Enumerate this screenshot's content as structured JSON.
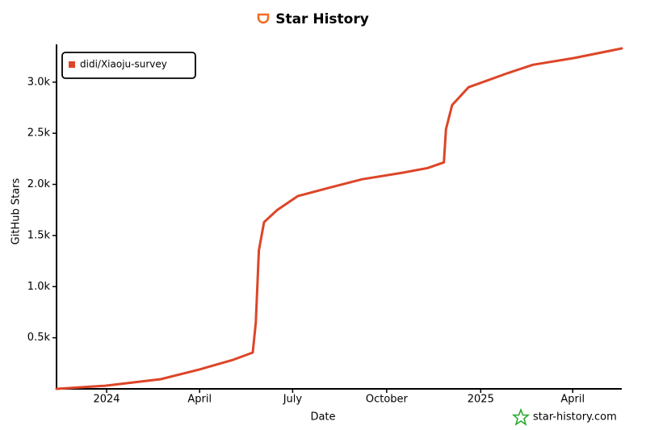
{
  "chart_data": {
    "type": "line",
    "title": "Star History",
    "x_label": "Date",
    "y_label": "GitHub Stars",
    "watermark": "star-history.com",
    "legend": "upper left",
    "xlim": [
      "2023-11-13",
      "2025-05-19"
    ],
    "xticks": [
      {
        "value": "2024-01-01",
        "label": "2024"
      },
      {
        "value": "2024-04-01",
        "label": "April"
      },
      {
        "value": "2024-07-01",
        "label": "July"
      },
      {
        "value": "2024-10-01",
        "label": "October"
      },
      {
        "value": "2025-01-01",
        "label": "2025"
      },
      {
        "value": "2025-04-01",
        "label": "April"
      }
    ],
    "ylim": [
      0,
      3330
    ],
    "yticks": [
      {
        "value": 500,
        "label": "0.5k"
      },
      {
        "value": 1000,
        "label": "1.0k"
      },
      {
        "value": 1500,
        "label": "1.5k"
      },
      {
        "value": 2000,
        "label": "2.0k"
      },
      {
        "value": 2500,
        "label": "2.5k"
      },
      {
        "value": 3000,
        "label": "3.0k"
      }
    ],
    "x": [
      "2023-11-13",
      "2023-12-30",
      "2024-02-23",
      "2024-04-01",
      "2024-05-04",
      "2024-05-23",
      "2024-05-26",
      "2024-05-29",
      "2024-06-03",
      "2024-06-16",
      "2024-07-06",
      "2024-08-07",
      "2024-09-07",
      "2024-10-17",
      "2024-11-10",
      "2024-11-26",
      "2024-11-28",
      "2024-12-04",
      "2024-12-20",
      "2025-01-28",
      "2025-02-21",
      "2025-04-02",
      "2025-05-19"
    ],
    "series": [
      {
        "name": "didi/Xiaoju-survey",
        "color": "#dd4528",
        "values": [
          0,
          30,
          95,
          190,
          285,
          355,
          650,
          1355,
          1630,
          1750,
          1885,
          1970,
          2050,
          2115,
          2160,
          2215,
          2540,
          2775,
          2950,
          3090,
          3170,
          3235,
          3330
        ]
      }
    ]
  }
}
